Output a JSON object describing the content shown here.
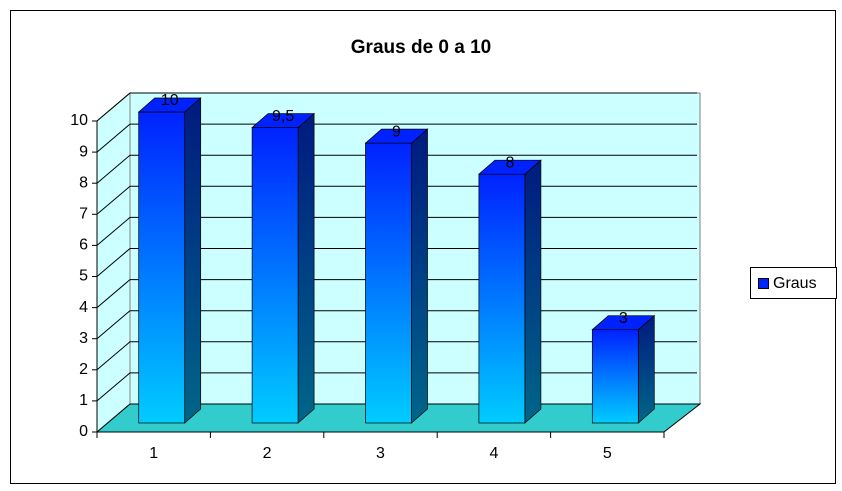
{
  "chart_data": {
    "type": "bar3d",
    "title": "Graus de 0 a 10",
    "categories": [
      "1",
      "2",
      "3",
      "4",
      "5"
    ],
    "series": [
      {
        "name": "Graus",
        "color": "#0022ff",
        "values": [
          10,
          9.5,
          9,
          8,
          3
        ],
        "value_labels": [
          "10",
          "9,5",
          "9",
          "8",
          "3"
        ]
      }
    ],
    "ylim": [
      0,
      10
    ],
    "yticks": [
      0,
      1,
      2,
      3,
      4,
      5,
      6,
      7,
      8,
      9,
      10
    ],
    "grid": true,
    "legend": "right"
  }
}
